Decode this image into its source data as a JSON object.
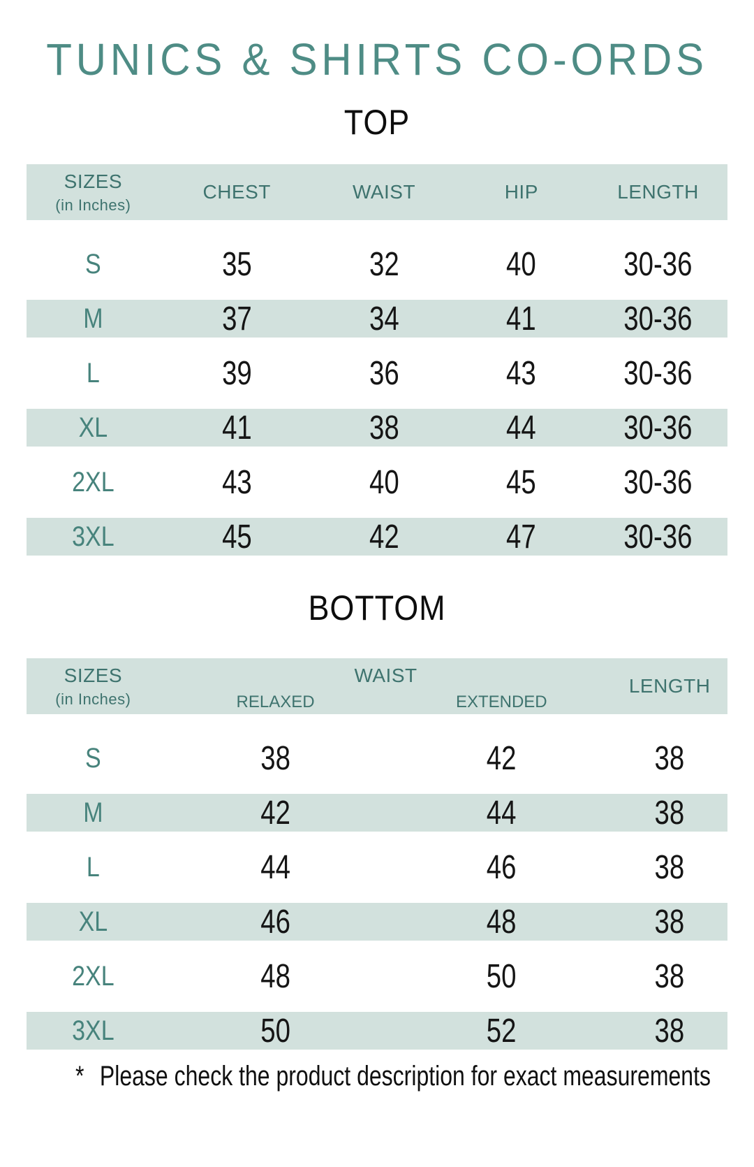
{
  "title": "TUNICS & SHIRTS CO-ORDS",
  "colors": {
    "accent_teal": "#4E8C85",
    "header_text_teal": "#3E736E",
    "size_label_teal": "#47837C",
    "row_band_teal": "#D2E1DD",
    "number_black": "#151515"
  },
  "top_table": {
    "heading": "TOP",
    "sizes_header": {
      "title": "SIZES",
      "subtitle": "(in Inches)"
    },
    "columns": [
      "CHEST",
      "WAIST",
      "HIP",
      "LENGTH"
    ],
    "rows": [
      {
        "size": "S",
        "chest": "35",
        "waist": "32",
        "hip": "40",
        "length": "30-36"
      },
      {
        "size": "M",
        "chest": "37",
        "waist": "34",
        "hip": "41",
        "length": "30-36"
      },
      {
        "size": "L",
        "chest": "39",
        "waist": "36",
        "hip": "43",
        "length": "30-36"
      },
      {
        "size": "XL",
        "chest": "41",
        "waist": "38",
        "hip": "44",
        "length": "30-36"
      },
      {
        "size": "2XL",
        "chest": "43",
        "waist": "40",
        "hip": "45",
        "length": "30-36"
      },
      {
        "size": "3XL",
        "chest": "45",
        "waist": "42",
        "hip": "47",
        "length": "30-36"
      }
    ]
  },
  "bottom_table": {
    "heading": "BOTTOM",
    "sizes_header": {
      "title": "SIZES",
      "subtitle": "(in Inches)"
    },
    "waist_header": {
      "title": "WAIST",
      "relaxed": "RELAXED",
      "extended": "EXTENDED"
    },
    "length_header": "LENGTH",
    "rows": [
      {
        "size": "S",
        "waist_relaxed": "38",
        "waist_extended": "42",
        "length": "38"
      },
      {
        "size": "M",
        "waist_relaxed": "42",
        "waist_extended": "44",
        "length": "38"
      },
      {
        "size": "L",
        "waist_relaxed": "44",
        "waist_extended": "46",
        "length": "38"
      },
      {
        "size": "XL",
        "waist_relaxed": "46",
        "waist_extended": "48",
        "length": "38"
      },
      {
        "size": "2XL",
        "waist_relaxed": "48",
        "waist_extended": "50",
        "length": "38"
      },
      {
        "size": "3XL",
        "waist_relaxed": "50",
        "waist_extended": "52",
        "length": "38"
      }
    ]
  },
  "footnote": {
    "symbol": "*",
    "text": "Please check the product description for exact measurements"
  }
}
